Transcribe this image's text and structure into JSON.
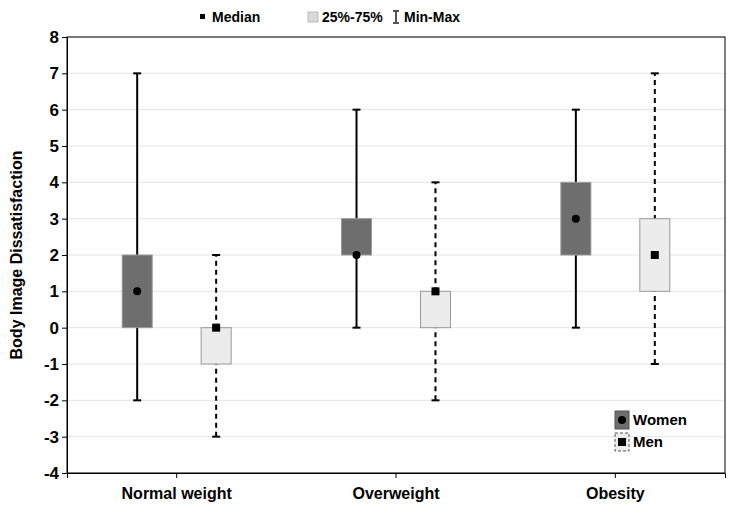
{
  "chart_data": {
    "type": "box",
    "ylabel": "Body Image Dissatisfaction",
    "categories": [
      "Normal weight",
      "Overweight",
      "Obesity"
    ],
    "stat_legend": [
      "Median",
      "25%-75%",
      "Min-Max"
    ],
    "series": [
      {
        "name": "Women",
        "color": "#6e6e6e",
        "marker": "circle",
        "line_style": "solid",
        "min": [
          -2,
          0,
          0
        ],
        "q1": [
          0,
          2,
          2
        ],
        "median": [
          1,
          2,
          3
        ],
        "q3": [
          2,
          3,
          4
        ],
        "max": [
          7,
          6,
          6
        ]
      },
      {
        "name": "Men",
        "color": "#ececec",
        "marker": "square",
        "line_style": "dashed",
        "min": [
          -3,
          -2,
          -1
        ],
        "q1": [
          -1,
          0,
          1
        ],
        "median": [
          0,
          1,
          2
        ],
        "q3": [
          0,
          1,
          3
        ],
        "max": [
          2,
          4,
          7
        ]
      }
    ],
    "ylim": [
      -4,
      8
    ],
    "yticks": [
      -4,
      -3,
      -2,
      -1,
      0,
      1,
      2,
      3,
      4,
      5,
      6,
      7,
      8
    ],
    "grid": true,
    "legend": "lower right"
  }
}
